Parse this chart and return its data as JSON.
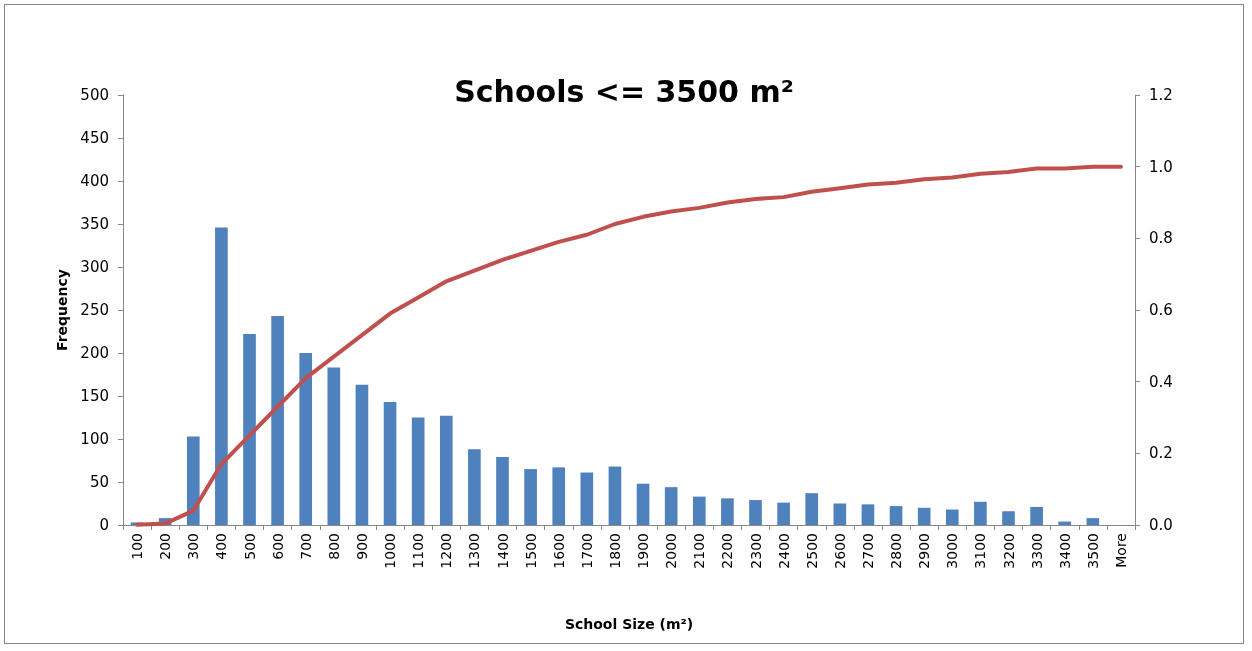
{
  "chart_data": {
    "type": "bar",
    "title": "Schools <= 3500 m²",
    "xlabel": "School Size (m²)",
    "ylabel": "Frequency",
    "categories": [
      "100",
      "200",
      "300",
      "400",
      "500",
      "600",
      "700",
      "800",
      "900",
      "1000",
      "1100",
      "1200",
      "1300",
      "1400",
      "1500",
      "1600",
      "1700",
      "1800",
      "1900",
      "2000",
      "2100",
      "2200",
      "2300",
      "2400",
      "2500",
      "2600",
      "2700",
      "2800",
      "2900",
      "3000",
      "3100",
      "3200",
      "3300",
      "3400",
      "3500",
      "More"
    ],
    "series": [
      {
        "color": "#4f81bd",
        "values": [
          3,
          8,
          103,
          346,
          222,
          243,
          200,
          183,
          163,
          143,
          125,
          127,
          88,
          79,
          65,
          67,
          61,
          68,
          48,
          44,
          33,
          31,
          29,
          26,
          37,
          25,
          24,
          22,
          20,
          18,
          27,
          16,
          21,
          4,
          8,
          0
        ]
      },
      {
        "type": "line",
        "axis": "y2",
        "color": "#c0504d",
        "values": [
          0.001,
          0.004,
          0.04,
          0.17,
          0.25,
          0.33,
          0.41,
          0.47,
          0.53,
          0.59,
          0.635,
          0.68,
          0.71,
          0.74,
          0.765,
          0.79,
          0.81,
          0.84,
          0.86,
          0.875,
          0.885,
          0.9,
          0.91,
          0.915,
          0.93,
          0.94,
          0.95,
          0.955,
          0.965,
          0.97,
          0.98,
          0.985,
          0.995,
          0.995,
          1.0,
          1.0
        ]
      }
    ],
    "ylim": [
      0,
      500
    ],
    "yticks": [
      0,
      50,
      100,
      150,
      200,
      250,
      300,
      350,
      400,
      450,
      500
    ],
    "y2lim": [
      0,
      1.2
    ],
    "y2ticks": [
      {
        "value": 0,
        "label": "0.0"
      },
      0.2,
      0.4,
      0.6,
      0.8,
      {
        "value": 1,
        "label": "1.0"
      },
      1.2
    ],
    "grid": false,
    "marker": "none",
    "line_style": "solid"
  }
}
